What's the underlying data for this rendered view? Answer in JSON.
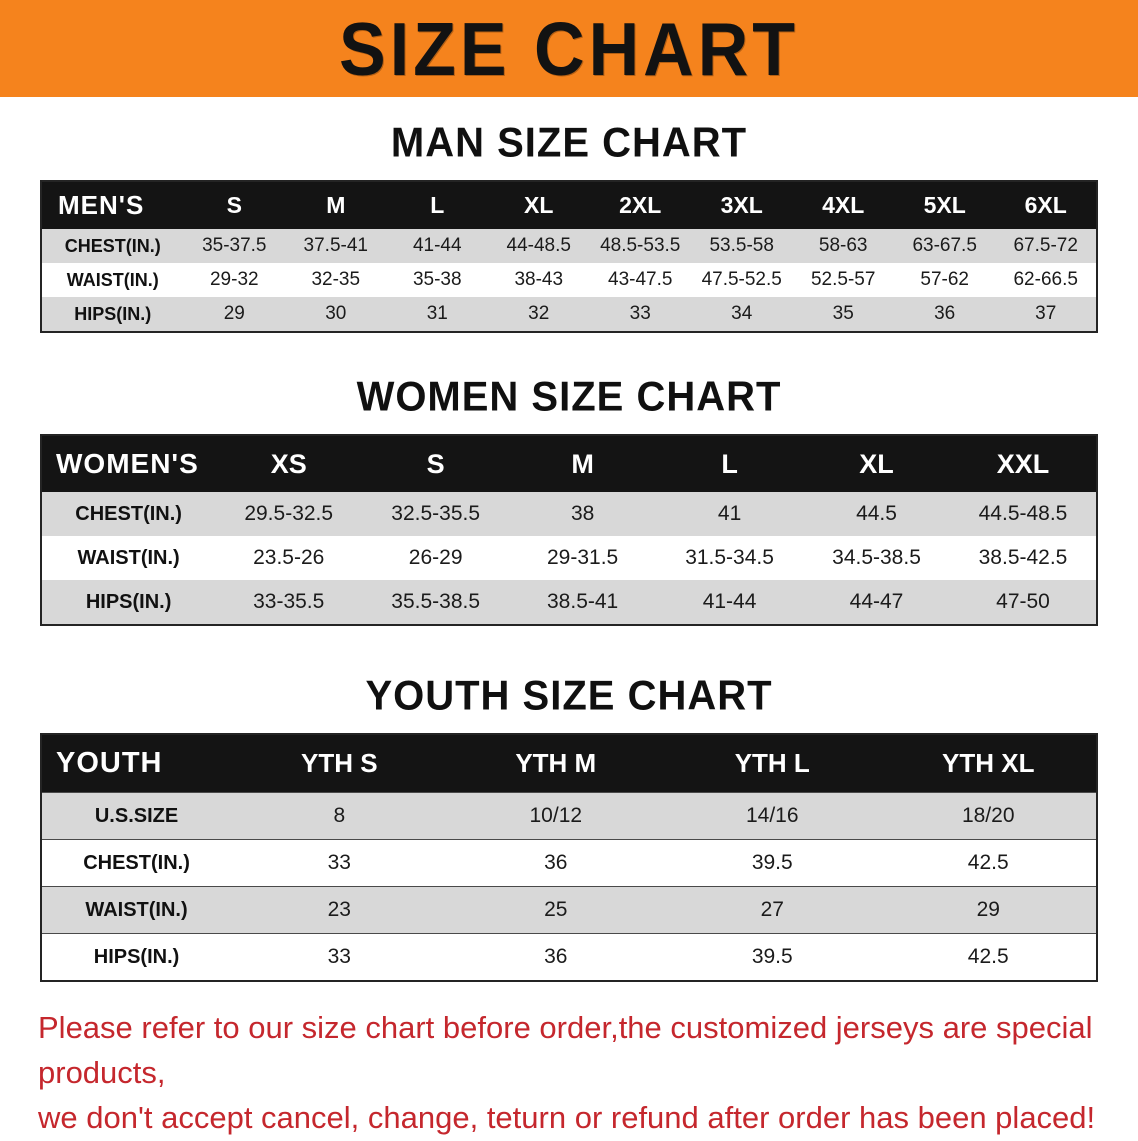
{
  "banner": {
    "title": "SIZE CHART"
  },
  "colors": {
    "banner-bg": "#F5831D",
    "header-bg": "#141414",
    "header-text": "#FFFFFF",
    "row-shade": "#D8D8D8",
    "note-red": "#C5272D"
  },
  "sections": [
    {
      "id": "men",
      "title": "MAN SIZE CHART",
      "header": [
        "MEN'S",
        "S",
        "M",
        "L",
        "XL",
        "2XL",
        "3XL",
        "4XL",
        "5XL",
        "6XL"
      ],
      "rows": [
        [
          "CHEST(IN.)",
          "35-37.5",
          "37.5-41",
          "41-44",
          "44-48.5",
          "48.5-53.5",
          "53.5-58",
          "58-63",
          "63-67.5",
          "67.5-72"
        ],
        [
          "WAIST(IN.)",
          "29-32",
          "32-35",
          "35-38",
          "38-43",
          "43-47.5",
          "47.5-52.5",
          "52.5-57",
          "57-62",
          "62-66.5"
        ],
        [
          "HIPS(IN.)",
          "29",
          "30",
          "31",
          "32",
          "33",
          "34",
          "35",
          "36",
          "37"
        ]
      ]
    },
    {
      "id": "women",
      "title": "WOMEN SIZE CHART",
      "header": [
        "WOMEN'S",
        "XS",
        "S",
        "M",
        "L",
        "XL",
        "XXL"
      ],
      "rows": [
        [
          "CHEST(IN.)",
          "29.5-32.5",
          "32.5-35.5",
          "38",
          "41",
          "44.5",
          "44.5-48.5"
        ],
        [
          "WAIST(IN.)",
          "23.5-26",
          "26-29",
          "29-31.5",
          "31.5-34.5",
          "34.5-38.5",
          "38.5-42.5"
        ],
        [
          "HIPS(IN.)",
          "33-35.5",
          "35.5-38.5",
          "38.5-41",
          "41-44",
          "44-47",
          "47-50"
        ]
      ]
    },
    {
      "id": "youth",
      "title": "YOUTH SIZE CHART",
      "header": [
        "YOUTH",
        "YTH S",
        "YTH M",
        "YTH L",
        "YTH XL"
      ],
      "rows": [
        [
          "U.S.SIZE",
          "8",
          "10/12",
          "14/16",
          "18/20"
        ],
        [
          "CHEST(IN.)",
          "33",
          "36",
          "39.5",
          "42.5"
        ],
        [
          "WAIST(IN.)",
          "23",
          "25",
          "27",
          "29"
        ],
        [
          "HIPS(IN.)",
          "33",
          "36",
          "39.5",
          "42.5"
        ]
      ]
    }
  ],
  "footer_note": {
    "line1": "Please refer to our size chart before order,the customized jerseys are special products,",
    "line2": "we don't accept cancel, change, teturn or refund after order has been placed!"
  }
}
